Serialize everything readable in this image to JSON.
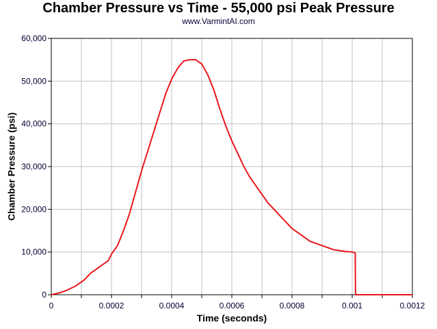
{
  "chart_data": {
    "type": "line",
    "title": "Chamber Pressure vs Time - 55,000 psi Peak Pressure",
    "subtitle": "www.VarmintAI.com",
    "xlabel": "Time (seconds)",
    "ylabel": "Chamber Pressure (psi)",
    "xlim": [
      0,
      0.0012
    ],
    "ylim": [
      0,
      60000
    ],
    "x_ticks": [
      0,
      0.0001,
      0.0002,
      0.0003,
      0.0004,
      0.0005,
      0.0006,
      0.0007,
      0.0008,
      0.0009,
      0.001,
      0.0011,
      0.0012
    ],
    "x_tick_labels": [
      "0",
      "",
      "0.0002",
      "",
      "0.0004",
      "",
      "0.0006",
      "",
      "0.0008",
      "",
      "0.001",
      "",
      "0.0012"
    ],
    "y_ticks": [
      0,
      10000,
      20000,
      30000,
      40000,
      50000,
      60000
    ],
    "y_tick_labels": [
      "0",
      "10,000",
      "20,000",
      "30,000",
      "40,000",
      "50,000",
      "60,000"
    ],
    "grid": true,
    "series": [
      {
        "color": "#e8161b",
        "x": [
          0,
          3e-05,
          5e-05,
          8e-05,
          0.0001,
          0.00011,
          0.00013,
          0.00015,
          0.00017,
          0.00019,
          0.0002,
          0.00022,
          0.00024,
          0.00026,
          0.00028,
          0.0003,
          0.00032,
          0.00034,
          0.00036,
          0.00038,
          0.0004,
          0.00042,
          0.00044,
          0.00046,
          0.00048,
          0.0005,
          0.00052,
          0.00054,
          0.00056,
          0.00058,
          0.0006,
          0.00062,
          0.00064,
          0.00066,
          0.00068,
          0.0007,
          0.00072,
          0.00074,
          0.00076,
          0.00078,
          0.0008,
          0.00082,
          0.00084,
          0.00086,
          0.00088,
          0.0009,
          0.00092,
          0.00094,
          0.00096,
          0.00098,
          0.001,
          0.00101,
          0.001011,
          0.00105,
          0.0011,
          0.00115,
          0.0012
        ],
        "y": [
          0,
          500,
          1000,
          2000,
          3000,
          3500,
          5000,
          6000,
          7000,
          8000,
          9500,
          11500,
          15000,
          19000,
          24000,
          29000,
          33500,
          38000,
          42500,
          47000,
          50500,
          53000,
          54700,
          55000,
          55000,
          54000,
          51500,
          48000,
          43500,
          39500,
          36000,
          33000,
          30000,
          27500,
          25500,
          23500,
          21500,
          20000,
          18500,
          17000,
          15500,
          14500,
          13500,
          12500,
          12000,
          11500,
          11000,
          10500,
          10300,
          10100,
          10000,
          9800,
          0,
          0,
          0,
          0,
          0
        ]
      }
    ]
  }
}
